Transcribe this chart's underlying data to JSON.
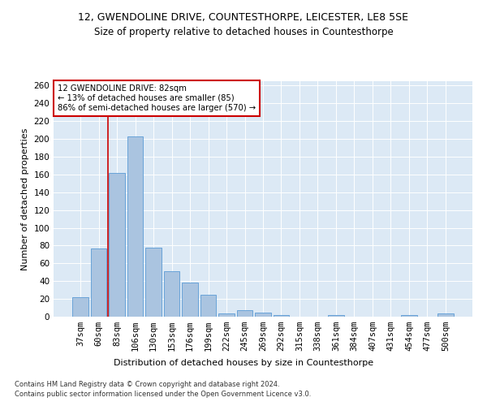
{
  "title": "12, GWENDOLINE DRIVE, COUNTESTHORPE, LEICESTER, LE8 5SE",
  "subtitle": "Size of property relative to detached houses in Countesthorpe",
  "xlabel": "Distribution of detached houses by size in Countesthorpe",
  "ylabel": "Number of detached properties",
  "footnote1": "Contains HM Land Registry data © Crown copyright and database right 2024.",
  "footnote2": "Contains public sector information licensed under the Open Government Licence v3.0.",
  "categories": [
    "37sqm",
    "60sqm",
    "83sqm",
    "106sqm",
    "130sqm",
    "153sqm",
    "176sqm",
    "199sqm",
    "222sqm",
    "245sqm",
    "269sqm",
    "292sqm",
    "315sqm",
    "338sqm",
    "361sqm",
    "384sqm",
    "407sqm",
    "431sqm",
    "454sqm",
    "477sqm",
    "500sqm"
  ],
  "values": [
    22,
    77,
    162,
    203,
    78,
    51,
    38,
    25,
    4,
    7,
    5,
    2,
    0,
    0,
    2,
    0,
    0,
    0,
    2,
    0,
    4
  ],
  "bar_color": "#aac4e0",
  "bar_edge_color": "#5b9bd5",
  "vline_color": "#cc0000",
  "vline_x": 1.5,
  "annotation_text": "12 GWENDOLINE DRIVE: 82sqm\n← 13% of detached houses are smaller (85)\n86% of semi-detached houses are larger (570) →",
  "annotation_box_color": "#ffffff",
  "annotation_box_edge": "#cc0000",
  "ylim": [
    0,
    265
  ],
  "yticks": [
    0,
    20,
    40,
    60,
    80,
    100,
    120,
    140,
    160,
    180,
    200,
    220,
    240,
    260
  ],
  "bg_color": "#dce9f5",
  "title_fontsize": 9,
  "subtitle_fontsize": 8.5,
  "axis_label_fontsize": 8,
  "tick_fontsize": 7.5,
  "footnote_fontsize": 6
}
